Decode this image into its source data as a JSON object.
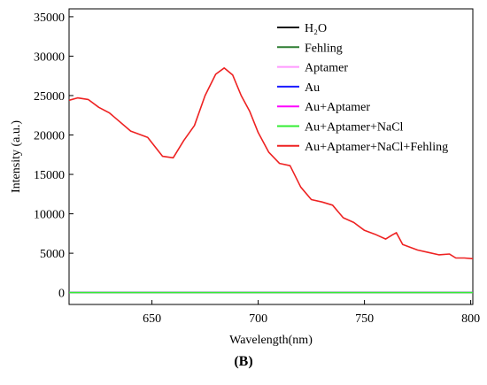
{
  "chart_data": {
    "type": "line",
    "title": "",
    "xlabel": "Wavelength(nm)",
    "ylabel": "Intensity (a.u.)",
    "xlim": [
      611,
      801
    ],
    "ylim": [
      -1500,
      36000
    ],
    "xticks": [
      650,
      700,
      750,
      800
    ],
    "yticks": [
      0,
      5000,
      10000,
      15000,
      20000,
      25000,
      30000,
      35000
    ],
    "ytick_labels": [
      "0",
      "5000",
      "10000",
      "15000",
      "20000",
      "25000",
      "30000",
      "35000"
    ],
    "legend_position": "top-right",
    "series": [
      {
        "name": "H₂O",
        "color": "#111111",
        "x": [
          611,
          801
        ],
        "y": [
          0,
          0
        ]
      },
      {
        "name": "Fehling",
        "color": "#2e7d32",
        "x": [
          611,
          801
        ],
        "y": [
          0,
          0
        ]
      },
      {
        "name": "Aptamer",
        "color": "#ff99ff",
        "x": [
          611,
          801
        ],
        "y": [
          0,
          0
        ]
      },
      {
        "name": "Au",
        "color": "#1a1aff",
        "x": [
          611,
          801
        ],
        "y": [
          0,
          0
        ]
      },
      {
        "name": "Au+Aptamer",
        "color": "#ff00ff",
        "x": [
          611,
          801
        ],
        "y": [
          0,
          0
        ]
      },
      {
        "name": "Au+Aptamer+NaCl",
        "color": "#33ee33",
        "x": [
          611,
          801
        ],
        "y": [
          0,
          0
        ]
      },
      {
        "name": "Au+Aptamer+NaCl+Fehling",
        "color": "#ee2222",
        "x": [
          611,
          615,
          620,
          625,
          630,
          640,
          648,
          655,
          660,
          665,
          670,
          675,
          680,
          684,
          688,
          692,
          696,
          700,
          705,
          710,
          715,
          720,
          725,
          730,
          735,
          740,
          745,
          750,
          755,
          760,
          763,
          765,
          768,
          775,
          780,
          785,
          790,
          793,
          797,
          801
        ],
        "y": [
          24400,
          24700,
          24500,
          23500,
          22800,
          20500,
          19700,
          17300,
          17100,
          19300,
          21200,
          25000,
          27700,
          28500,
          27600,
          25000,
          23000,
          20300,
          17800,
          16400,
          16100,
          13400,
          11800,
          11500,
          11100,
          9500,
          8900,
          7900,
          7400,
          6800,
          7300,
          7600,
          6100,
          5400,
          5100,
          4800,
          4900,
          4400,
          4400,
          4300
        ]
      }
    ]
  },
  "panel_label": "(B)"
}
